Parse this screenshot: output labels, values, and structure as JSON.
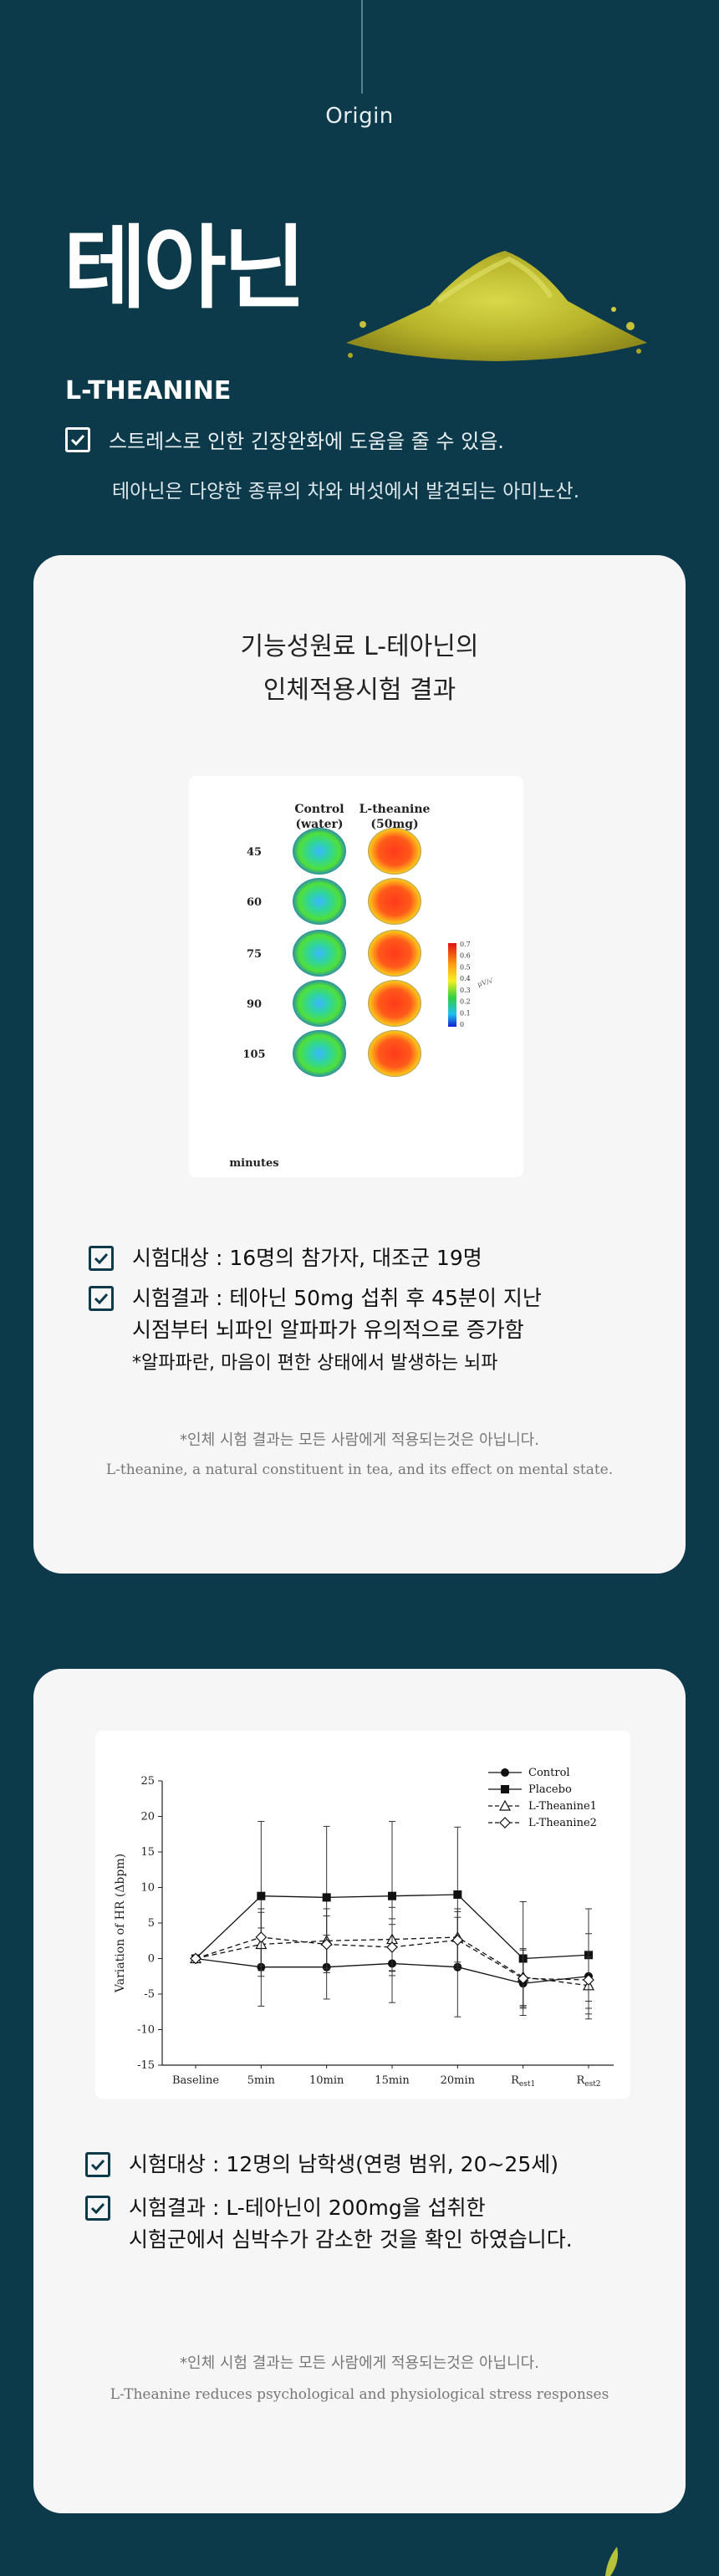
{
  "header": {
    "origin_label": "Origin",
    "title": "테아닌",
    "subtitle": "L-THEANINE",
    "benefit": "스트레스로 인한 긴장완화에 도움을 줄 수 있음.",
    "description": "테아닌은 다양한 종류의 차와 버섯에서 발견되는 아미노산."
  },
  "card1": {
    "title_line1": "기능성원료 L-테아닌의",
    "title_line2": "인체적용시험 결과",
    "figure": {
      "col_control": "Control",
      "col_control_sub": "(water)",
      "col_theanine": "L-theanine",
      "col_theanine_sub": "(50mg)",
      "row_labels": [
        "45",
        "60",
        "75",
        "90",
        "105"
      ],
      "minutes_label": "minutes",
      "scale_values": [
        "0.7",
        "0.6",
        "0.5",
        "0.4",
        "0.3",
        "0.2",
        "0.1",
        "0"
      ],
      "scale_unit": "μV/√",
      "theanine_alpha_levels": [
        0.45,
        0.55,
        0.65,
        0.7,
        0.7
      ],
      "control_alpha_levels": [
        0.3,
        0.3,
        0.3,
        0.35,
        0.35
      ]
    },
    "item1": "시험대상 : 16명의 참가자, 대조군 19명",
    "item2_line1": "시험결과 : 테아닌 50mg 섭취 후 45분이 지난",
    "item2_line2": "시점부터 뇌파인 알파파가 유의적으로 증가함",
    "item2_note": "*알파파란, 마음이 편한 상태에서 발생하는 뇌파",
    "disclaimer": "*인체 시험 결과는 모든 사람에게 적용되는것은 아닙니다.",
    "source": "L-theanine, a natural constituent in tea, and its effect on mental state."
  },
  "card2": {
    "item1": "시험대상 : 12명의 남학생(연령 범위, 20~25세)",
    "item2_line1": "시험결과 :  L-테아닌이 200mg을 섭취한",
    "item2_line2": "시험군에서 심박수가 감소한 것을 확인 하였습니다.",
    "disclaimer": "*인체 시험 결과는 모든 사람에게 적용되는것은 아닙니다.",
    "source": "L-Theanine reduces psychological and physiological stress responses"
  },
  "chart_data": {
    "type": "line",
    "ylabel": "Variation of HR (Δbpm)",
    "xlabel": "",
    "ylim": [
      -15,
      25
    ],
    "yticks": [
      -15,
      -10,
      -5,
      0,
      5,
      10,
      15,
      20,
      25
    ],
    "categories": [
      "Baseline",
      "5min",
      "10min",
      "15min",
      "20min",
      "Rest1",
      "Rest2"
    ],
    "category_labels": [
      {
        "main": "Baseline",
        "sub": ""
      },
      {
        "main": "5min",
        "sub": ""
      },
      {
        "main": "10min",
        "sub": ""
      },
      {
        "main": "15min",
        "sub": ""
      },
      {
        "main": "20min",
        "sub": ""
      },
      {
        "main": "R",
        "sub": "est1"
      },
      {
        "main": "R",
        "sub": "est2"
      }
    ],
    "legend_position": "top-right",
    "series": [
      {
        "name": "Control",
        "marker": "circle-filled",
        "dash": false,
        "values": [
          0,
          -1.2,
          -1.2,
          -0.7,
          -1.2,
          -3.5,
          -2.5
        ],
        "errors": [
          0,
          5.5,
          4.5,
          5.5,
          7,
          3.5,
          6
        ]
      },
      {
        "name": "Placebo",
        "marker": "square-filled",
        "dash": false,
        "values": [
          0,
          8.8,
          8.6,
          8.8,
          9,
          0,
          0.5
        ],
        "errors": [
          0,
          10.5,
          10,
          10.5,
          9.5,
          8,
          6.5
        ]
      },
      {
        "name": "L-Theanine1",
        "marker": "triangle-open",
        "dash": true,
        "values": [
          0,
          2,
          2.5,
          2.7,
          3,
          -2.6,
          -3.8
        ],
        "errors": [
          0,
          4.5,
          4.5,
          4.5,
          4,
          4,
          4
        ]
      },
      {
        "name": "L-Theanine2",
        "marker": "diamond-open",
        "dash": true,
        "values": [
          0,
          3,
          2,
          1.6,
          2.6,
          -2.8,
          -3
        ],
        "errors": [
          0,
          4,
          4,
          4,
          4,
          4,
          4
        ]
      }
    ]
  }
}
